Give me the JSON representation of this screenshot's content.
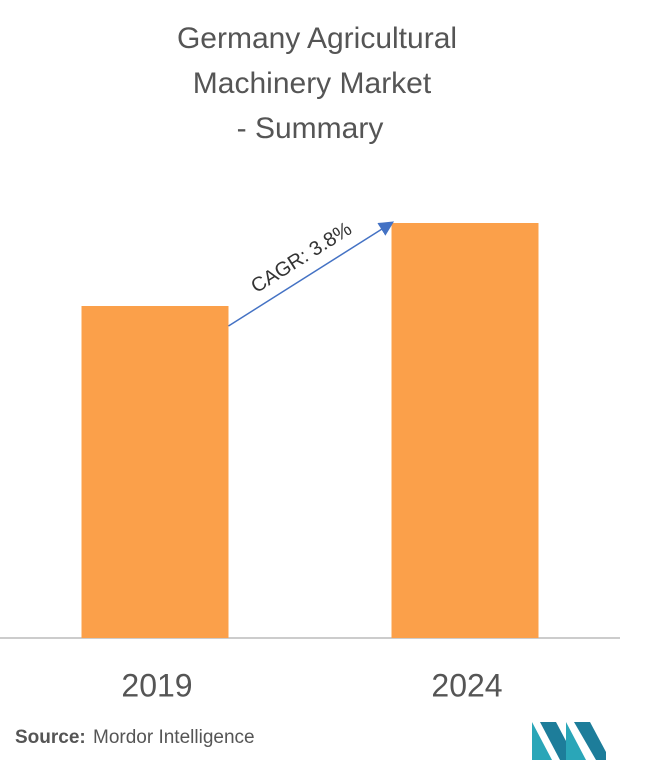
{
  "chart_data": {
    "type": "bar",
    "title": [
      "Germany Agricultural",
      "Machinery Market",
      "- Summary"
    ],
    "categories": [
      "2019",
      "2024"
    ],
    "values": [
      80,
      100
    ],
    "color": "#fba04a",
    "ylim": [
      0,
      100
    ],
    "annotation": "CAGR: 3.8%",
    "annotation_color": "#4472c4",
    "source_label": "Source:",
    "source": "Mordor Intelligence"
  }
}
